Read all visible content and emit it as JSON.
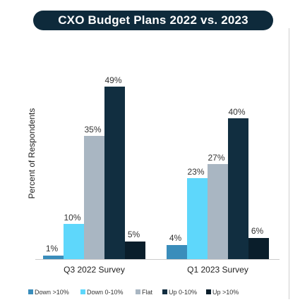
{
  "chart_data": {
    "type": "bar",
    "title": "CXO Budget Plans 2022 vs. 2023",
    "ylabel": "Percent of Respondents",
    "xlabel": "",
    "ylim": [
      0,
      52
    ],
    "grid": false,
    "legend_position": "bottom",
    "categories": [
      "Q3 2022 Survey",
      "Q1 2023 Survey"
    ],
    "series": [
      {
        "name": "Down >10%",
        "color": "#3a8dbb",
        "values": [
          1,
          4
        ],
        "labels": [
          "1%",
          "4%"
        ]
      },
      {
        "name": "Down 0-10%",
        "color": "#5ed7fb",
        "values": [
          10,
          23
        ],
        "labels": [
          "10%",
          "23%"
        ]
      },
      {
        "name": "Flat",
        "color": "#a9b6c2",
        "values": [
          35,
          27
        ],
        "labels": [
          "35%",
          "27%"
        ]
      },
      {
        "name": "Up 0-10%",
        "color": "#112e40",
        "values": [
          49,
          40
        ],
        "labels": [
          "49%",
          "40%"
        ]
      },
      {
        "name": "Up >10%",
        "color": "#0a1e2b",
        "values": [
          5,
          6
        ],
        "labels": [
          "5%",
          "6%"
        ]
      }
    ]
  }
}
